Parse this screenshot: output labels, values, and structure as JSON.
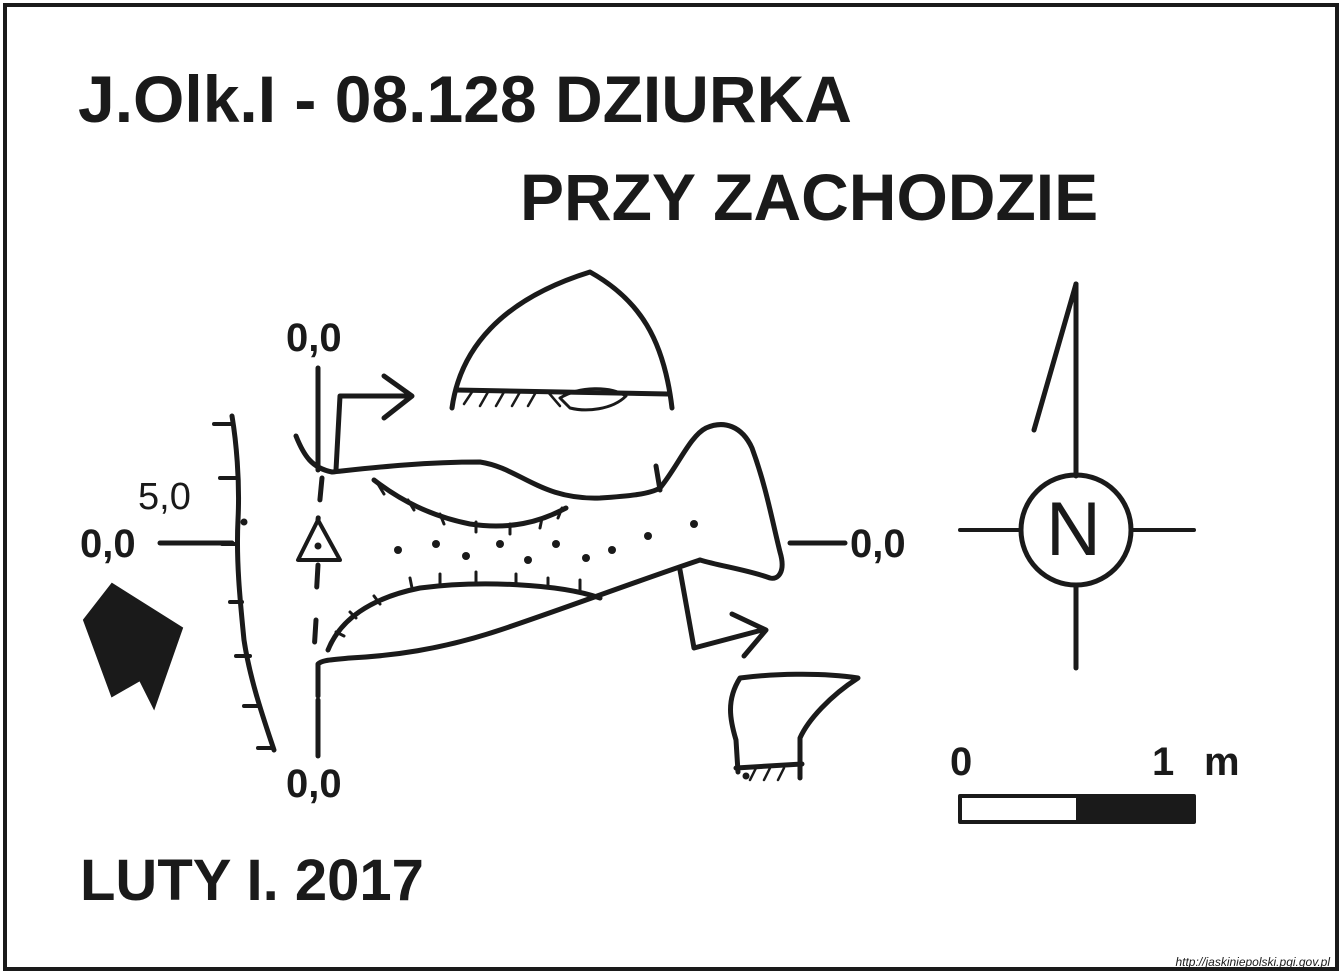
{
  "title": {
    "line1": "J.Olk.I - 08.128  DZIURKA",
    "line2": "PRZY ZACHODZIE"
  },
  "survey_date": "LUTY I. 2017",
  "section_labels": {
    "top": "0,0",
    "left": "0,0",
    "right": "0,0",
    "bottom": "0,0",
    "depth_mark": "5,0"
  },
  "compass": {
    "letter": "N",
    "icon": "north-arrow-icon"
  },
  "scale_bar": {
    "start": "0",
    "end": "1",
    "unit": "m"
  },
  "source": "http://jaskiniepolski.pgi.gov.pl",
  "colors": {
    "ink": "#1a1a1a",
    "paper": "#ffffff"
  }
}
